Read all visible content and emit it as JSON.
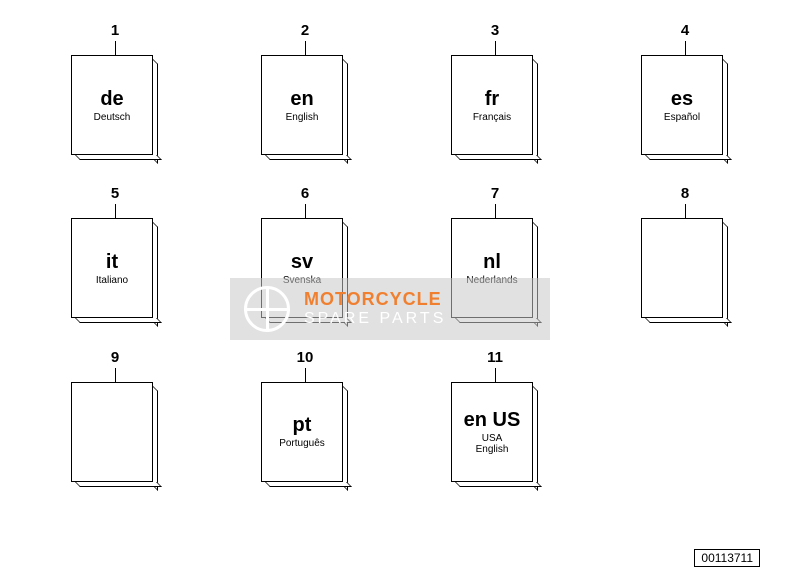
{
  "part_number": "00113711",
  "watermark": {
    "main": "MOTORCYCLE",
    "sub": "SPARE PARTS",
    "bg_color": "rgba(200,200,200,0.55)",
    "main_color": "#f08030",
    "sub_color": "#ffffff"
  },
  "items": [
    {
      "num": "1",
      "code": "de",
      "lang": "Deutsch",
      "has_text": true
    },
    {
      "num": "2",
      "code": "en",
      "lang": "English",
      "has_text": true
    },
    {
      "num": "3",
      "code": "fr",
      "lang": "Français",
      "has_text": true
    },
    {
      "num": "4",
      "code": "es",
      "lang": "Español",
      "has_text": true
    },
    {
      "num": "5",
      "code": "it",
      "lang": "Italiano",
      "has_text": true
    },
    {
      "num": "6",
      "code": "sv",
      "lang": "Svenska",
      "has_text": true
    },
    {
      "num": "7",
      "code": "nl",
      "lang": "Nederlands",
      "has_text": true
    },
    {
      "num": "8",
      "code": "",
      "lang": "",
      "has_text": false
    },
    {
      "num": "9",
      "code": "",
      "lang": "",
      "has_text": false
    },
    {
      "num": "10",
      "code": "pt",
      "lang": "Português",
      "has_text": true
    },
    {
      "num": "11",
      "code": "en US",
      "lang": "USA\nEnglish",
      "has_text": true
    }
  ],
  "style": {
    "book_w": 88,
    "book_h": 108,
    "code_fontsize": 20,
    "lang_fontsize": 10,
    "num_fontsize": 15,
    "border_color": "#000000",
    "bg_color": "#ffffff"
  }
}
